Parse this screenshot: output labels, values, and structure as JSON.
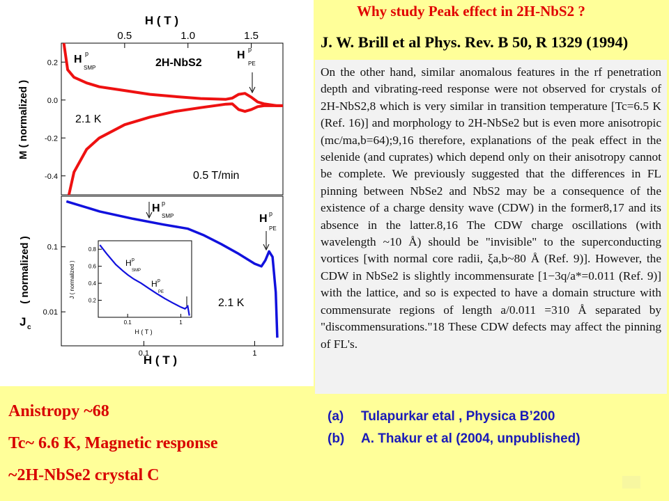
{
  "slide": {
    "title": "Why study Peak effect in 2H-NbS2 ?",
    "reference_heading": "J. W. Brill et al Phys. Rev. B 50, R 1329 (1994)",
    "quote": "On the other hand, similar anomalous features in the rf penetration depth and vibrating-reed response were not observed for crystals of 2H-NbS2,8 which is very similar in transition temperature [Tc=6.5 K (Ref. 16)] and morphology to 2H-NbSe2 but is even more anisotropic (mc/ma,b=64);9,16 therefore, explanations of the peak effect in the selenide (and cuprates) which depend only on their anisotropy cannot be complete. We previously suggested that the differences in FL pinning between NbSe2 and NbS2 may be a consequence of the existence of a charge density wave (CDW) in the former8,17 and its absence in the latter.8,16 The CDW charge oscillations (with wavelength ~10 Å) should be \"invisible\" to the superconducting vortices [with normal core radii, ξa,b~80 Å (Ref. 9)]. However, the CDW in NbSe2 is slightly incommensurate [1−3q/a*=0.011 (Ref. 9)] with the lattice, and so is expected to have a domain structure with commensurate regions of length a/0.011 =310 Å separated by \"discommensurations.\"18 These CDW defects may affect the pinning of FL's.",
    "citations": [
      {
        "label": "(a)",
        "text": "Tulapurkar etal , Physica B’200"
      },
      {
        "label": "(b)",
        "text": "A. Thakur et al (2004, unpublished)"
      }
    ],
    "summary_lines": [
      "Anistropy ~68",
      "Tc~ 6.6 K, Magnetic response",
      "~2H-NbSe2 crystal C"
    ]
  },
  "colors": {
    "red_curve": "#ee1111",
    "blue_curve": "#1111dd",
    "title_red": "#e00000",
    "summary_red": "#d80000",
    "citation_blue": "#1a1ab8"
  },
  "chart_data": [
    {
      "type": "line",
      "name_on_chart": "2H-NbS2",
      "top_axis_label": "H ( T )",
      "top_axis_ticks": [
        "0.5",
        "1.0",
        "1.5"
      ],
      "xlim": [
        0,
        1.75
      ],
      "ylabel": "M ( normalized )",
      "y_ticks": [
        "0.2",
        "0.0",
        "-0.2",
        "-0.4"
      ],
      "ylim": [
        -0.5,
        0.3
      ],
      "annotations": [
        "H",
        "p",
        "SMP",
        "H",
        "p",
        "PE",
        "2.1 K",
        "0.5 T/min"
      ],
      "series": [
        {
          "x": [
            0.02,
            0.05,
            0.1,
            0.2,
            0.3,
            0.5,
            0.7,
            0.9,
            1.1,
            1.3,
            1.35,
            1.4,
            1.45,
            1.5,
            1.55,
            1.6,
            1.7,
            1.75
          ],
          "y": [
            0.3,
            0.16,
            0.12,
            0.09,
            0.07,
            0.05,
            0.03,
            0.018,
            0.008,
            0.004,
            0.01,
            0.03,
            0.035,
            0.015,
            -0.01,
            -0.02,
            -0.03,
            -0.03
          ]
        },
        {
          "x": [
            0.06,
            0.1,
            0.2,
            0.3,
            0.5,
            0.7,
            0.9,
            1.1,
            1.3,
            1.35,
            1.4,
            1.45,
            1.5,
            1.55,
            1.6,
            1.7,
            1.75
          ],
          "y": [
            -0.5,
            -0.38,
            -0.26,
            -0.2,
            -0.13,
            -0.09,
            -0.06,
            -0.04,
            -0.022,
            -0.02,
            -0.05,
            -0.06,
            -0.05,
            -0.035,
            -0.03,
            -0.03,
            -0.03
          ]
        }
      ]
    },
    {
      "type": "line",
      "xlabel": "H ( T )",
      "x_ticks": [
        "0.1",
        "1"
      ],
      "xscale": "log",
      "ylabel": "Jc ( normalized )",
      "y_ticks": [
        "0.1",
        "0.01"
      ],
      "yscale": "log",
      "annotations": [
        "H",
        "p",
        "SMP",
        "H",
        "p",
        "PE",
        "2.1 K"
      ],
      "series": [
        {
          "x": [
            0.02,
            0.04,
            0.08,
            0.15,
            0.25,
            0.35,
            0.5,
            0.7,
            1.0,
            1.15,
            1.25,
            1.35,
            1.45,
            1.55,
            1.6
          ],
          "y": [
            0.5,
            0.35,
            0.27,
            0.22,
            0.19,
            0.15,
            0.11,
            0.08,
            0.055,
            0.05,
            0.062,
            0.085,
            0.07,
            0.02,
            0.004
          ]
        }
      ]
    },
    {
      "type": "line",
      "xlabel": "H ( T )",
      "x_ticks": [
        "0.1",
        "1"
      ],
      "xscale": "log",
      "ylabel": "Jc ( normalized )",
      "y_ticks": [
        "0.8",
        "0.6",
        "0.4",
        "0.2"
      ],
      "annotations": [
        "H",
        "p",
        "SMP",
        "H",
        "p",
        "PE"
      ],
      "series": [
        {
          "x": [
            0.03,
            0.04,
            0.06,
            0.08,
            0.1,
            0.13,
            0.18,
            0.25,
            0.35,
            0.5,
            0.7,
            1.0,
            1.2,
            1.35,
            1.45
          ],
          "y": [
            0.85,
            0.75,
            0.62,
            0.55,
            0.5,
            0.45,
            0.4,
            0.34,
            0.28,
            0.22,
            0.17,
            0.12,
            0.1,
            0.13,
            0.02
          ]
        }
      ]
    }
  ]
}
